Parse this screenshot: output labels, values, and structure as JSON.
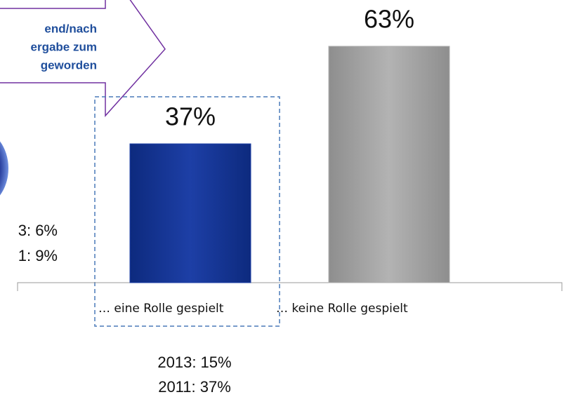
{
  "chart_data": {
    "type": "bar",
    "categories": [
      "… eine Rolle gespielt",
      "… keine Rolle gespielt"
    ],
    "values": [
      37,
      63
    ],
    "value_labels": [
      "37%",
      "63%"
    ],
    "colors": [
      "#1d3fa6",
      "#b0b0b0"
    ],
    "callout_lines": [
      "end/nach",
      "ergabe zum",
      "geworden"
    ],
    "left_notes": [
      "3: 6%",
      "1: 9%"
    ],
    "notes": [
      "2013: 15%",
      "2011: 37%"
    ]
  }
}
